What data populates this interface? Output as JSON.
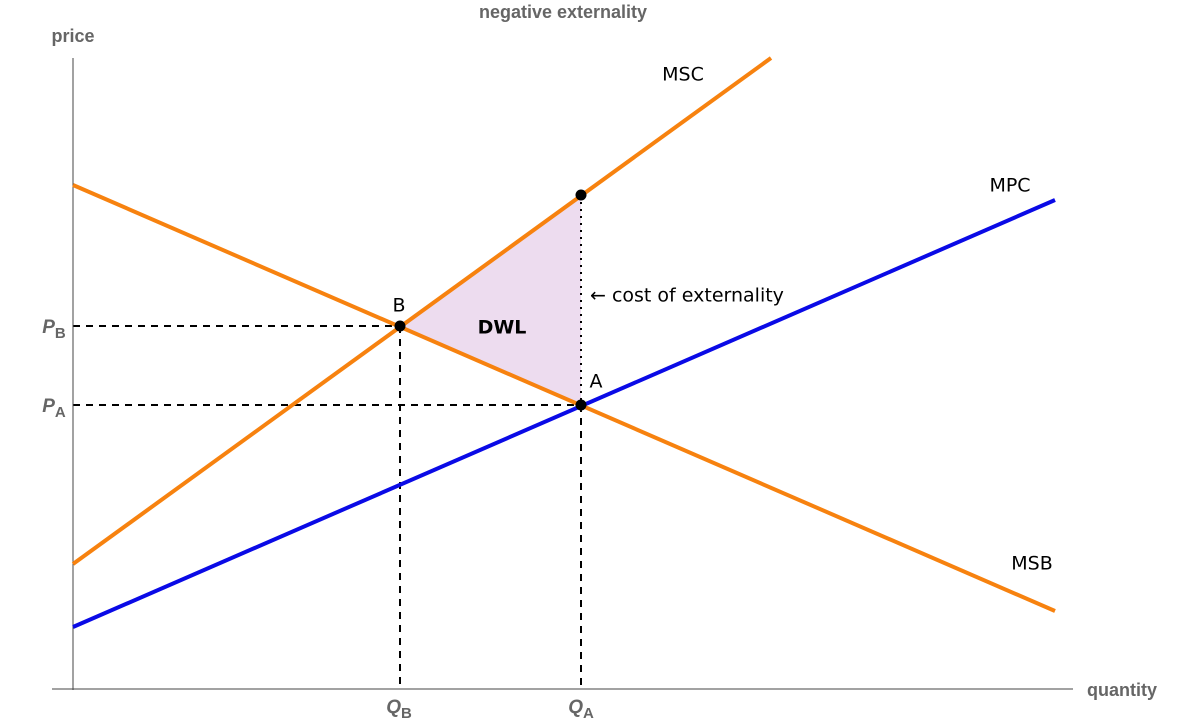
{
  "title": "negative externality",
  "axes": {
    "y_label": "price",
    "x_label": "quantity"
  },
  "curves": {
    "msc": "MSC",
    "mpc": "MPC",
    "msb": "MSB"
  },
  "points": {
    "b": "B",
    "a": "A"
  },
  "area_label": "DWL",
  "annotation": "← cost of externality",
  "axis_marks": {
    "p_b": {
      "main": "P",
      "sub": "B"
    },
    "p_a": {
      "main": "P",
      "sub": "A"
    },
    "q_b": {
      "main": "Q",
      "sub": "B"
    },
    "q_a": {
      "main": "Q",
      "sub": "A"
    }
  }
}
